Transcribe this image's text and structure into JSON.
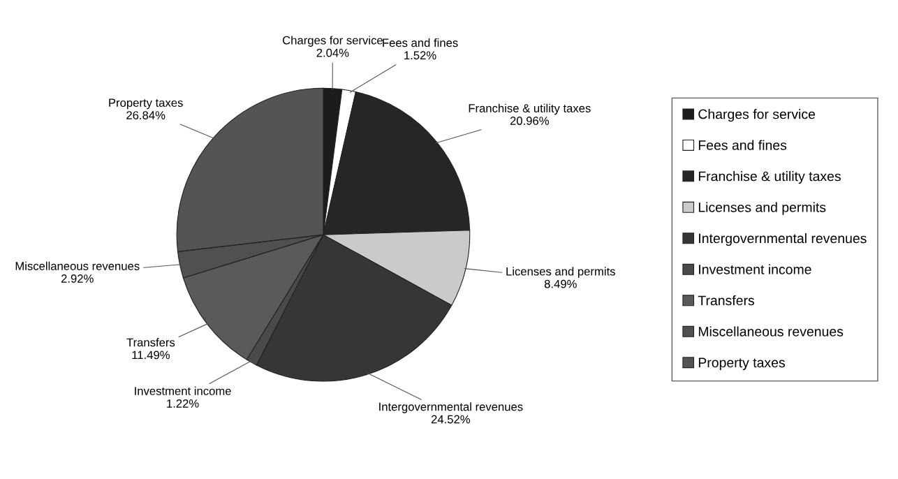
{
  "chart_data": {
    "type": "pie",
    "categories": [
      "Charges for service",
      "Fees and fines",
      "Franchise & utility taxes",
      "Licenses and permits",
      "Intergovernmental revenues",
      "Investment income",
      "Transfers",
      "Miscellaneous revenues",
      "Property taxes"
    ],
    "values": [
      2.04,
      1.52,
      20.96,
      8.49,
      24.52,
      1.22,
      11.49,
      2.92,
      26.84
    ],
    "value_labels": [
      "2.04%",
      "1.52%",
      "20.96%",
      "8.49%",
      "24.52%",
      "1.22%",
      "11.49%",
      "2.92%",
      "26.84%"
    ],
    "colors": [
      "#1c1c1c",
      "#ffffff",
      "#262626",
      "#cacaca",
      "#363636",
      "#4a4a4a",
      "#5a5a5a",
      "#505050",
      "#545454"
    ],
    "legend": "right"
  }
}
